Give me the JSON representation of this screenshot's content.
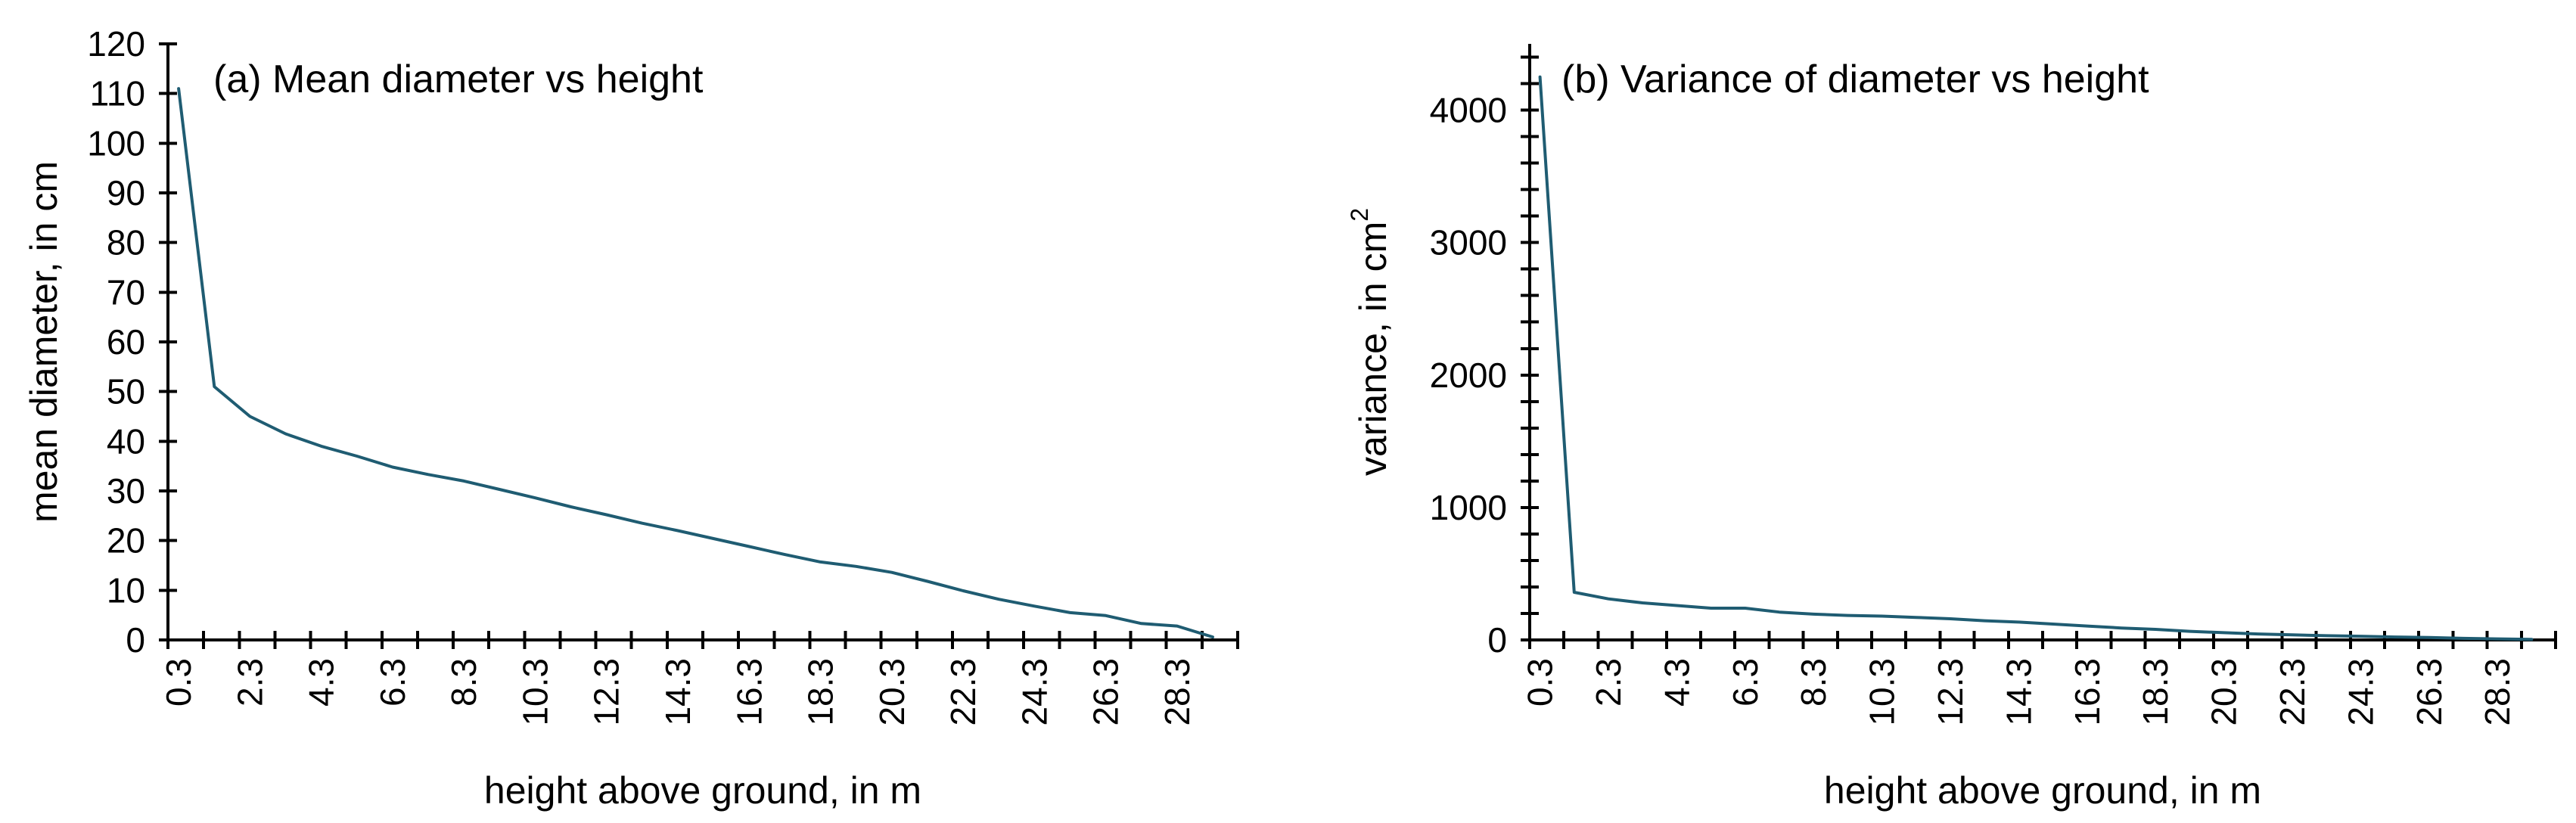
{
  "chart_data": [
    {
      "type": "line",
      "title": "(a) Mean diameter vs height",
      "xlabel": "height above ground, in m",
      "ylabel": "mean diameter, in cm",
      "ylabel_sup": "",
      "ylim": [
        0,
        120
      ],
      "yticks": [
        0,
        10,
        20,
        30,
        40,
        50,
        60,
        70,
        80,
        90,
        100,
        110,
        120
      ],
      "xtick_labels": [
        "0.3",
        "2.3",
        "4.3",
        "6.3",
        "8.3",
        "10.3",
        "12.3",
        "14.3",
        "16.3",
        "18.3",
        "20.3",
        "22.3",
        "24.3",
        "26.3",
        "28.3"
      ],
      "x": [
        0.3,
        1.3,
        2.3,
        3.3,
        4.3,
        5.3,
        6.3,
        7.3,
        8.3,
        9.3,
        10.3,
        11.3,
        12.3,
        13.3,
        14.3,
        15.3,
        16.3,
        17.3,
        18.3,
        19.3,
        20.3,
        21.3,
        22.3,
        23.3,
        24.3,
        25.3,
        26.3,
        27.3,
        28.3,
        29.3
      ],
      "series": [
        {
          "values": [
            111,
            51,
            45,
            41.5,
            39,
            37,
            34.8,
            33.3,
            32,
            30.3,
            28.6,
            26.8,
            25.2,
            23.5,
            22,
            20.4,
            18.8,
            17.2,
            15.7,
            14.8,
            13.6,
            11.8,
            9.9,
            8.2,
            6.8,
            5.5,
            4.9,
            3.3,
            2.8,
            0.6
          ],
          "color": "#1f5c72"
        }
      ]
    },
    {
      "type": "line",
      "title": "(b) Variance of diameter vs height",
      "xlabel": "height above ground, in m",
      "ylabel": "variance, in cm",
      "ylabel_sup": "2",
      "ylim": [
        0,
        4500
      ],
      "yticks": [
        0,
        1000,
        2000,
        3000,
        4000
      ],
      "xtick_labels": [
        "0.3",
        "2.3",
        "4.3",
        "6.3",
        "8.3",
        "10.3",
        "12.3",
        "14.3",
        "16.3",
        "18.3",
        "20.3",
        "22.3",
        "24.3",
        "26.3",
        "28.3"
      ],
      "x": [
        0.3,
        1.3,
        2.3,
        3.3,
        4.3,
        5.3,
        6.3,
        7.3,
        8.3,
        9.3,
        10.3,
        11.3,
        12.3,
        13.3,
        14.3,
        15.3,
        16.3,
        17.3,
        18.3,
        19.3,
        20.3,
        21.3,
        22.3,
        23.3,
        24.3,
        25.3,
        26.3,
        27.3,
        28.3,
        29.3
      ],
      "series": [
        {
          "values": [
            4250,
            360,
            310,
            280,
            260,
            240,
            240,
            210,
            195,
            185,
            180,
            170,
            160,
            145,
            135,
            120,
            105,
            90,
            80,
            65,
            55,
            45,
            38,
            32,
            28,
            22,
            18,
            12,
            8,
            4
          ],
          "color": "#1f5c72"
        }
      ]
    }
  ]
}
